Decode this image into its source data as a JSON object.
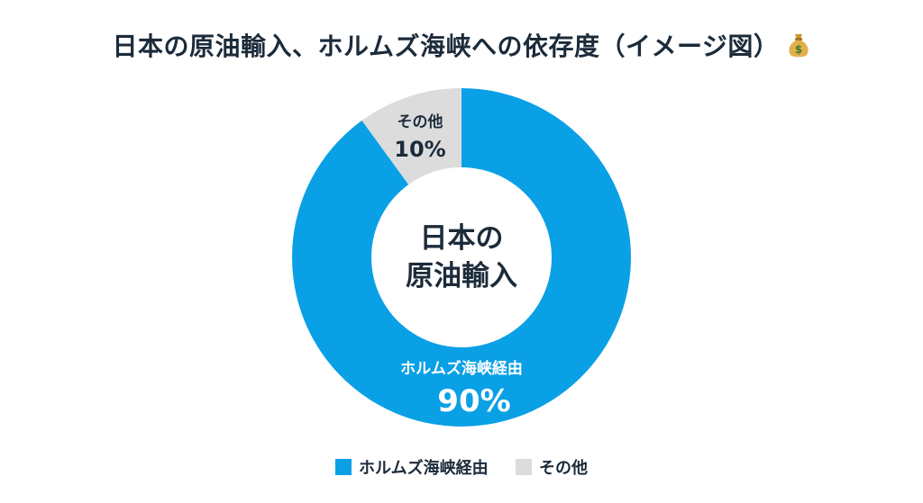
{
  "header": {
    "title": "日本の原油輸入、ホルムズ海峡への依存度（イメージ図）",
    "title_icon": "money-bag-icon"
  },
  "center_label": {
    "line1": "日本の",
    "line2": "原油輸入"
  },
  "colors": {
    "hormuz": "#0aa0e6",
    "other": "#dcdcdc",
    "title_text": "#1c2b3a",
    "slice_text_light": "#ffffff",
    "slice_text_dark": "#1c2b3a"
  },
  "chart_data": {
    "type": "pie",
    "donut": true,
    "title": "日本の原油輸入、ホルムズ海峡への依存度（イメージ図）",
    "center_text": [
      "日本の",
      "原油輸入"
    ],
    "slices": [
      {
        "name": "ホルムズ海峡経由",
        "value": 90,
        "label": "90%"
      },
      {
        "name": "その他",
        "value": 10,
        "label": "10%"
      }
    ],
    "legend_position": "bottom"
  },
  "legend": {
    "items": [
      {
        "label": "ホルムズ海峡経由"
      },
      {
        "label": "その他"
      }
    ]
  }
}
